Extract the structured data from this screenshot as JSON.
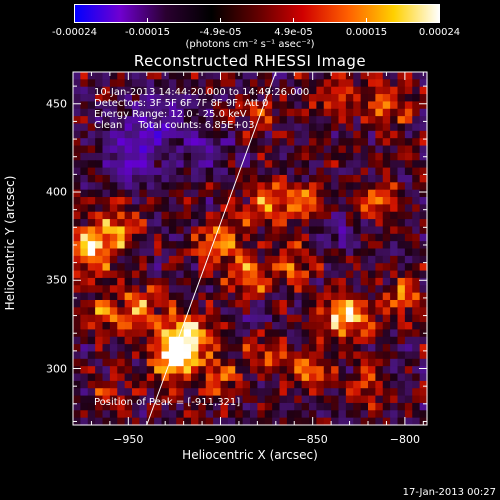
{
  "colorbar": {
    "tick_labels": [
      "-0.00024",
      "-0.00015",
      "-4.9e-05",
      "4.9e-05",
      "0.00015",
      "0.00024"
    ],
    "units_label": "(photons cm⁻² s⁻¹ asec⁻²)",
    "colors": [
      "#0000ff",
      "#7000d0",
      "#2a0030",
      "#000000",
      "#600000",
      "#d00000",
      "#ff6000",
      "#ffd000",
      "#ffffff"
    ]
  },
  "chart_data": {
    "type": "heatmap",
    "title": "Reconstructed RHESSI Image",
    "xlabel": "Heliocentric X (arcsec)",
    "ylabel": "Heliocentric Y (arcsec)",
    "xlim": [
      -980,
      -788
    ],
    "ylim": [
      268,
      468
    ],
    "x_ticks": [
      -950,
      -900,
      -850,
      -800
    ],
    "y_ticks": [
      300,
      350,
      400,
      450
    ],
    "limb_line": {
      "x": [
        -940,
        -870
      ],
      "y": [
        268,
        468
      ]
    },
    "annotations": {
      "time_range": "10-Jan-2013 14:44:20.000 to 14:49:26.000",
      "detectors": "Detectors: 3F 5F 6F 7F 8F 9F, Att 0",
      "energy_range": "Energy Range: 12.0 - 25.0 keV",
      "method": "Clean",
      "total_counts": "Total counts: 6.85E+03",
      "peak_position": "Position of Peak = [-911,321]"
    },
    "blobs": [
      {
        "x": -920,
        "y": 318,
        "intensity": 1.0,
        "sigma": 9
      },
      {
        "x": -925,
        "y": 305,
        "intensity": 0.8,
        "sigma": 8
      },
      {
        "x": -832,
        "y": 330,
        "intensity": 0.85,
        "sigma": 9
      },
      {
        "x": -850,
        "y": 300,
        "intensity": 0.55,
        "sigma": 8
      },
      {
        "x": -970,
        "y": 368,
        "intensity": 0.75,
        "sigma": 10
      },
      {
        "x": -955,
        "y": 380,
        "intensity": 0.55,
        "sigma": 8
      },
      {
        "x": -900,
        "y": 372,
        "intensity": 0.65,
        "sigma": 9
      },
      {
        "x": -885,
        "y": 350,
        "intensity": 0.55,
        "sigma": 8
      },
      {
        "x": -875,
        "y": 395,
        "intensity": 0.6,
        "sigma": 8
      },
      {
        "x": -855,
        "y": 395,
        "intensity": 0.55,
        "sigma": 7
      },
      {
        "x": -860,
        "y": 360,
        "intensity": 0.5,
        "sigma": 8
      },
      {
        "x": -815,
        "y": 395,
        "intensity": 0.55,
        "sigma": 8
      },
      {
        "x": -800,
        "y": 340,
        "intensity": 0.5,
        "sigma": 8
      },
      {
        "x": -810,
        "y": 450,
        "intensity": 0.55,
        "sigma": 9
      },
      {
        "x": -840,
        "y": 455,
        "intensity": 0.4,
        "sigma": 8
      },
      {
        "x": -880,
        "y": 445,
        "intensity": 0.35,
        "sigma": 7
      },
      {
        "x": -945,
        "y": 335,
        "intensity": 0.55,
        "sigma": 9
      },
      {
        "x": -965,
        "y": 330,
        "intensity": 0.45,
        "sigma": 7
      },
      {
        "x": -900,
        "y": 295,
        "intensity": 0.45,
        "sigma": 8
      },
      {
        "x": -875,
        "y": 310,
        "intensity": 0.45,
        "sigma": 7
      },
      {
        "x": -960,
        "y": 285,
        "intensity": 0.35,
        "sigma": 7
      },
      {
        "x": -820,
        "y": 290,
        "intensity": 0.4,
        "sigma": 7
      },
      {
        "x": -935,
        "y": 440,
        "intensity": -0.5,
        "sigma": 12
      },
      {
        "x": -950,
        "y": 420,
        "intensity": -0.45,
        "sigma": 10
      },
      {
        "x": -910,
        "y": 425,
        "intensity": -0.35,
        "sigma": 9
      },
      {
        "x": -835,
        "y": 375,
        "intensity": -0.3,
        "sigma": 8
      },
      {
        "x": -880,
        "y": 330,
        "intensity": -0.25,
        "sigma": 7
      }
    ]
  },
  "footer": {
    "timestamp": "17-Jan-2013 00:27"
  }
}
